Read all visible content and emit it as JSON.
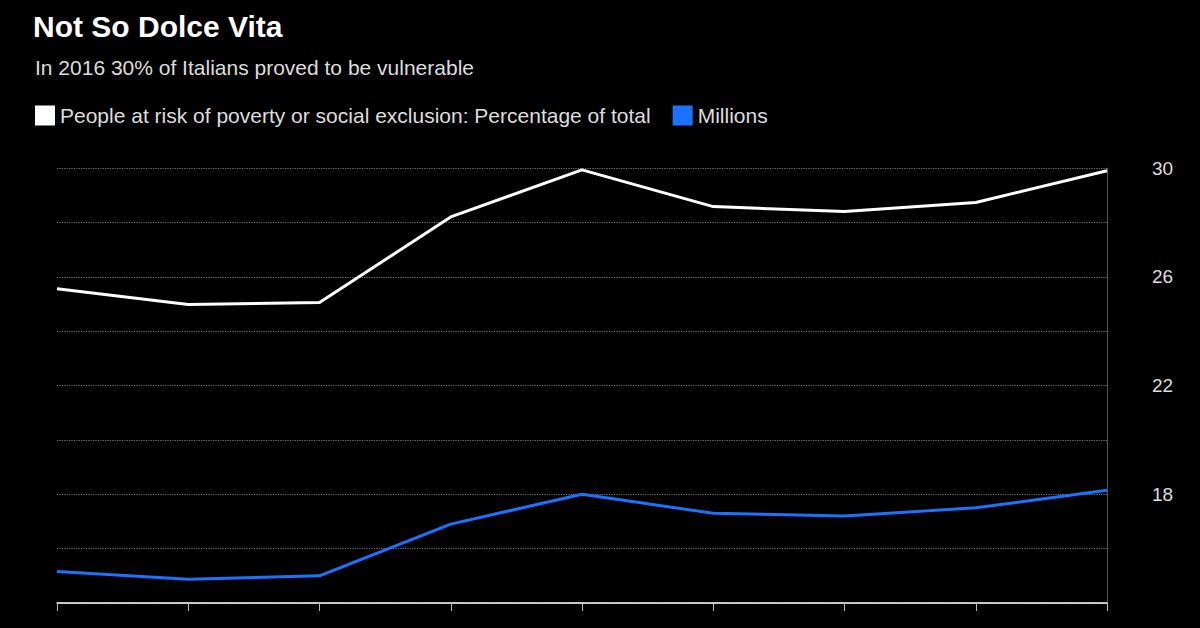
{
  "chart_data": {
    "type": "line",
    "title": "Not So Dolce Vita",
    "subtitle": "In 2016 30% of Italians proved to be vulnerable",
    "categories": [
      null,
      null,
      null,
      null,
      null,
      null,
      null,
      null,
      null
    ],
    "series": [
      {
        "name": "People at risk of poverty or social exclusion: Percentage of total",
        "color": "#ffffff",
        "values": [
          25.56,
          24.98,
          25.05,
          28.2,
          29.93,
          28.58,
          28.4,
          28.73,
          29.9
        ]
      },
      {
        "name": "Millions",
        "color": "#1a73ff",
        "values": [
          15.16,
          14.87,
          15.0,
          16.9,
          18.0,
          17.3,
          17.2,
          17.5,
          18.15
        ]
      }
    ],
    "ylim": [
      14,
      30
    ],
    "yticks": [
      18,
      22,
      26,
      30
    ],
    "grid": true,
    "legend": "top-left",
    "tick_labels": "y"
  }
}
